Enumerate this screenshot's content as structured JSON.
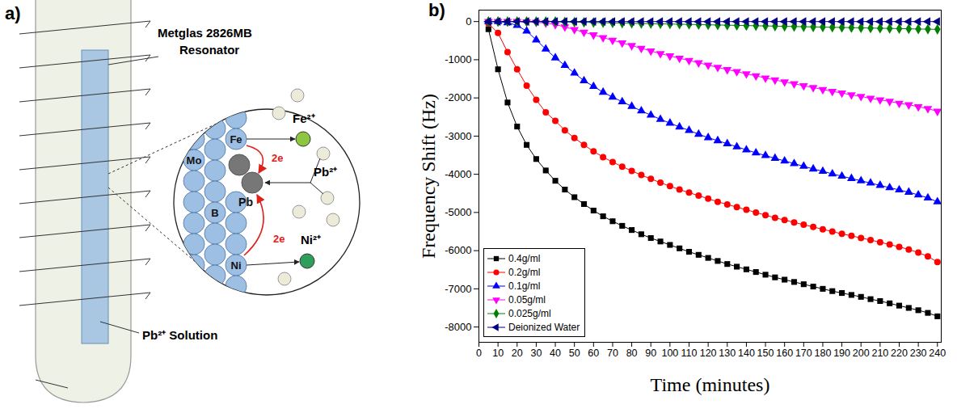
{
  "diagram": {
    "panel_label": "a)",
    "resonator_label": [
      "Metglas 2826MB",
      "Resonator"
    ],
    "solution_label": "Pb²⁺ Solution",
    "atom_labels": {
      "mo": "Mo",
      "fe": "Fe",
      "b": "B",
      "ni": "Ni"
    },
    "deposit_label": "Pb",
    "ion_labels": {
      "fe": "Fe²⁺",
      "pb": "Pb²⁺",
      "ni": "Ni²⁺"
    },
    "electron_labels": [
      "2e",
      "2e"
    ]
  },
  "chart_data": {
    "type": "line",
    "panel_label": "b)",
    "x_label": "Time (minutes)",
    "y_label": "Frequency Shift (Hz)",
    "xlim": [
      0,
      242
    ],
    "xticks": [
      0,
      10,
      20,
      30,
      40,
      50,
      60,
      70,
      80,
      90,
      100,
      110,
      120,
      130,
      140,
      150,
      160,
      170,
      180,
      190,
      200,
      210,
      220,
      230,
      240
    ],
    "ylim": [
      -8400,
      300
    ],
    "yticks": [
      -8000,
      -7000,
      -6000,
      -5000,
      -4000,
      -3000,
      -2000,
      -1000,
      0
    ],
    "grid": false,
    "legend": "lower left",
    "x": [
      5,
      10,
      15,
      20,
      25,
      30,
      35,
      40,
      45,
      50,
      55,
      60,
      65,
      70,
      75,
      80,
      85,
      90,
      95,
      100,
      105,
      110,
      115,
      120,
      125,
      130,
      135,
      140,
      145,
      150,
      155,
      160,
      165,
      170,
      175,
      180,
      185,
      190,
      195,
      200,
      205,
      210,
      215,
      220,
      225,
      230,
      235,
      240
    ],
    "series": [
      {
        "name": "0.4g/ml",
        "color": "#000000",
        "marker": "square",
        "line_style": "solid",
        "values": [
          -200,
          -1250,
          -2120,
          -2750,
          -3230,
          -3600,
          -3900,
          -4170,
          -4400,
          -4600,
          -4780,
          -4950,
          -5100,
          -5230,
          -5350,
          -5460,
          -5570,
          -5670,
          -5760,
          -5850,
          -5940,
          -6030,
          -6110,
          -6190,
          -6270,
          -6350,
          -6420,
          -6490,
          -6560,
          -6630,
          -6700,
          -6760,
          -6820,
          -6880,
          -6940,
          -7000,
          -7060,
          -7110,
          -7160,
          -7210,
          -7270,
          -7320,
          -7380,
          -7440,
          -7500,
          -7560,
          -7630,
          -7720
        ]
      },
      {
        "name": "0.2g/ml",
        "color": "#ff0000",
        "marker": "circle",
        "line_style": "solid",
        "values": [
          -50,
          -300,
          -800,
          -1250,
          -1680,
          -2050,
          -2380,
          -2600,
          -2850,
          -3050,
          -3230,
          -3400,
          -3550,
          -3680,
          -3800,
          -3910,
          -4020,
          -4120,
          -4220,
          -4310,
          -4400,
          -4480,
          -4560,
          -4640,
          -4720,
          -4790,
          -4860,
          -4930,
          -5000,
          -5070,
          -5140,
          -5200,
          -5260,
          -5320,
          -5380,
          -5440,
          -5500,
          -5560,
          -5610,
          -5670,
          -5720,
          -5780,
          -5840,
          -5900,
          -5970,
          -6050,
          -6150,
          -6300
        ]
      },
      {
        "name": "0.1g/ml",
        "color": "#0000ff",
        "marker": "triangle-up",
        "line_style": "solid",
        "values": [
          0,
          0,
          -30,
          -100,
          -250,
          -480,
          -720,
          -950,
          -1150,
          -1350,
          -1550,
          -1700,
          -1850,
          -1980,
          -2100,
          -2220,
          -2340,
          -2450,
          -2560,
          -2660,
          -2760,
          -2850,
          -2950,
          -3040,
          -3120,
          -3200,
          -3280,
          -3360,
          -3440,
          -3510,
          -3580,
          -3650,
          -3720,
          -3790,
          -3860,
          -3920,
          -3990,
          -4050,
          -4110,
          -4170,
          -4230,
          -4290,
          -4350,
          -4410,
          -4470,
          -4540,
          -4620,
          -4720
        ]
      },
      {
        "name": "0.05g/ml",
        "color": "#ff00ff",
        "marker": "triangle-down",
        "line_style": "solid",
        "values": [
          0,
          0,
          0,
          0,
          -10,
          -20,
          -40,
          -80,
          -140,
          -210,
          -280,
          -350,
          -420,
          -490,
          -560,
          -630,
          -700,
          -770,
          -840,
          -900,
          -960,
          -1020,
          -1080,
          -1140,
          -1200,
          -1260,
          -1310,
          -1370,
          -1420,
          -1480,
          -1530,
          -1580,
          -1630,
          -1680,
          -1730,
          -1780,
          -1830,
          -1870,
          -1920,
          -1960,
          -2010,
          -2050,
          -2090,
          -2140,
          -2180,
          -2230,
          -2280,
          -2350
        ]
      },
      {
        "name": "0.025g/ml",
        "color": "#008000",
        "marker": "diamond",
        "line_style": "solid",
        "values": [
          0,
          0,
          0,
          0,
          0,
          0,
          0,
          0,
          -10,
          -15,
          -20,
          -25,
          -30,
          -35,
          -40,
          -45,
          -50,
          -55,
          -60,
          -65,
          -70,
          -75,
          -80,
          -85,
          -90,
          -95,
          -100,
          -105,
          -110,
          -115,
          -120,
          -125,
          -130,
          -135,
          -140,
          -145,
          -150,
          -155,
          -160,
          -165,
          -170,
          -175,
          -180,
          -185,
          -190,
          -195,
          -200,
          -205
        ]
      },
      {
        "name": "Deionized Water",
        "color": "#000080",
        "marker": "triangle-left",
        "line_style": "solid",
        "values": [
          0,
          0,
          0,
          0,
          0,
          0,
          0,
          0,
          0,
          0,
          0,
          0,
          0,
          0,
          0,
          0,
          0,
          0,
          0,
          0,
          0,
          0,
          0,
          0,
          0,
          0,
          0,
          0,
          0,
          0,
          0,
          0,
          0,
          0,
          0,
          0,
          0,
          0,
          0,
          0,
          0,
          0,
          0,
          0,
          0,
          0,
          0,
          0
        ]
      }
    ]
  }
}
